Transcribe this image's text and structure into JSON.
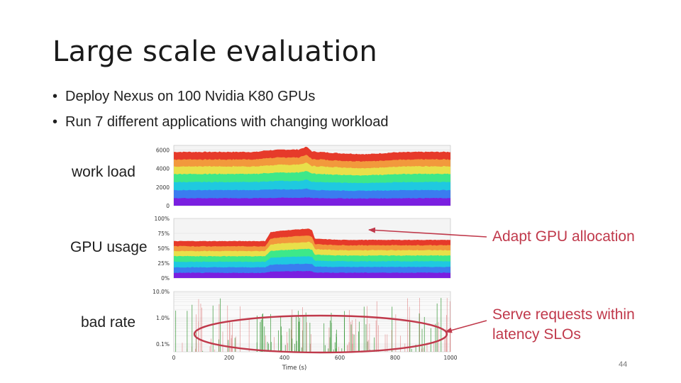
{
  "slide": {
    "title": "Large scale evaluation",
    "bullets": [
      "Deploy Nexus on 100 Nvidia K80 GPUs",
      "Run 7 different applications with changing workload"
    ],
    "bullet_marker": "•",
    "page_number": "44"
  },
  "annotations": {
    "gpu": "Adapt GPU allocation",
    "bad_rate_line1": "Serve requests within",
    "bad_rate_line2": "latency SLOs",
    "color": "#c0394b"
  },
  "chart_data": [
    {
      "type": "area",
      "row_label": "work load",
      "stacked": true,
      "ylim": [
        0,
        6500
      ],
      "yticks": [
        "0",
        "2000",
        "4000",
        "6000"
      ],
      "ytick_values": [
        0,
        2000,
        4000,
        6000
      ],
      "series_count": 7,
      "x": [
        0,
        100,
        200,
        300,
        330,
        400,
        450,
        480,
        500,
        600,
        700,
        800,
        900,
        1000
      ],
      "total": [
        5800,
        5800,
        5800,
        5800,
        5950,
        6050,
        6050,
        6350,
        5850,
        5650,
        5550,
        5750,
        5800,
        5800
      ]
    },
    {
      "type": "area",
      "row_label": "GPU usage",
      "stacked": true,
      "ylim": [
        0,
        100
      ],
      "yticks": [
        "0%",
        "25%",
        "50%",
        "75%",
        "100%"
      ],
      "ytick_values": [
        0,
        25,
        50,
        75,
        100
      ],
      "series_count": 7,
      "x": [
        0,
        330,
        350,
        400,
        490,
        500,
        510,
        600,
        800,
        1000
      ],
      "total": [
        62,
        62,
        77,
        80,
        83,
        80,
        66,
        64,
        64,
        64
      ]
    },
    {
      "type": "bar",
      "row_label": "bad rate",
      "ylog": true,
      "ylim": [
        0.05,
        10
      ],
      "yticks": [
        "0.1%",
        "1.0%",
        "10.0%"
      ],
      "ytick_values": [
        0.1,
        1,
        10
      ],
      "xticks": [
        "0",
        "200",
        "400",
        "600",
        "800",
        "1000"
      ],
      "xtick_values": [
        0,
        200,
        400,
        600,
        800,
        1000
      ],
      "xlabel": "Time (s)",
      "xlim": [
        0,
        1000
      ]
    }
  ],
  "colors": {
    "bands": [
      "#7a1fe0",
      "#3a7cf0",
      "#1fc9e0",
      "#3de88a",
      "#e8e04a",
      "#f2993c",
      "#e63a2a"
    ],
    "ellipse": "#c0394b",
    "arrow": "#c0394b",
    "bad_green": "#3d9a3d",
    "bad_red": "#d96a6a"
  }
}
